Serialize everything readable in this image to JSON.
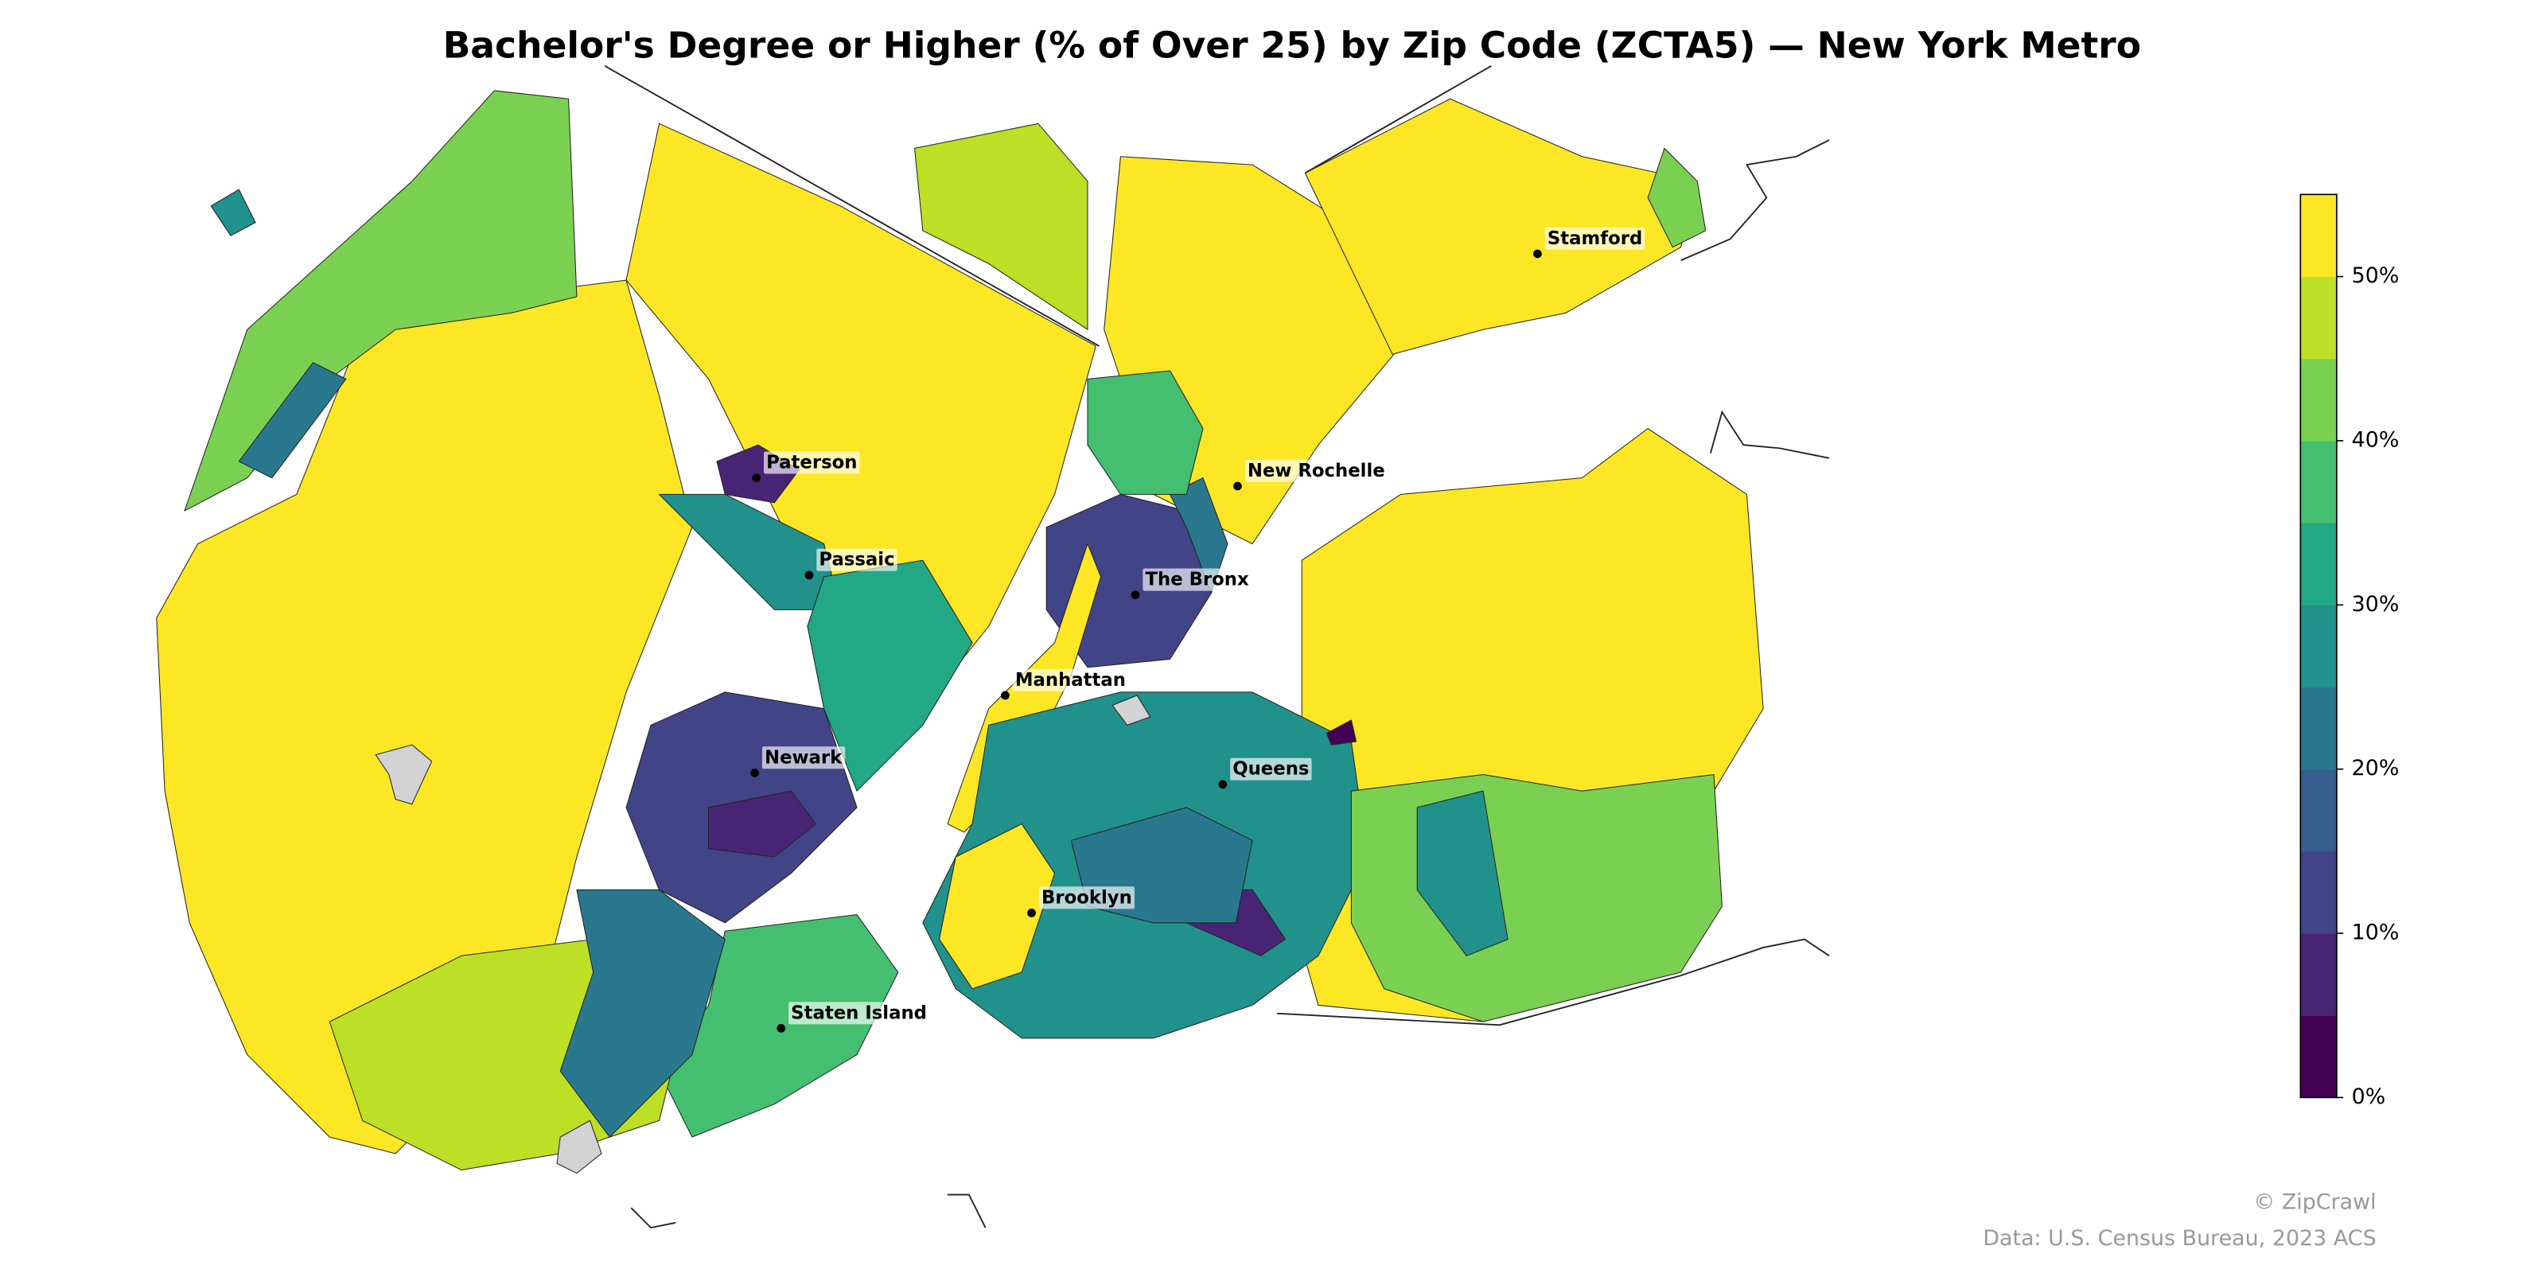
{
  "chart_data": {
    "type": "choropleth",
    "title": "Bachelor's Degree or Higher (% of Over 25) by Zip Code (ZCTA5) — New York Metro",
    "values": [
      55,
      42,
      55,
      55,
      55,
      55,
      48,
      8,
      28,
      12,
      7,
      32,
      37,
      48,
      22,
      10,
      24,
      55,
      27,
      8,
      20,
      55,
      44,
      26,
      35,
      40,
      28,
      22,
      2
    ],
    "colors": [
      "#440154",
      "#482475",
      "#414487",
      "#355f8d",
      "#2a788e",
      "#21918c",
      "#22a884",
      "#44bf70",
      "#7ad151",
      "#bddf26",
      "#fde725"
    ],
    "clim": [
      0,
      55
    ],
    "cticks": [
      {
        "value": 0,
        "label": "0%"
      },
      {
        "value": 10,
        "label": "10%"
      },
      {
        "value": 20,
        "label": "20%"
      },
      {
        "value": 30,
        "label": "30%"
      },
      {
        "value": 40,
        "label": "40%"
      },
      {
        "value": 50,
        "label": "50%"
      }
    ],
    "places": [
      "Stamford",
      "New Rochelle",
      "Paterson",
      "Passaic",
      "The Bronx",
      "Manhattan",
      "Newark",
      "Queens",
      "Brooklyn",
      "Staten Island"
    ],
    "credit": "© ZipCrawl",
    "source": "Data: U.S. Census Bureau, 2023 ACS"
  }
}
